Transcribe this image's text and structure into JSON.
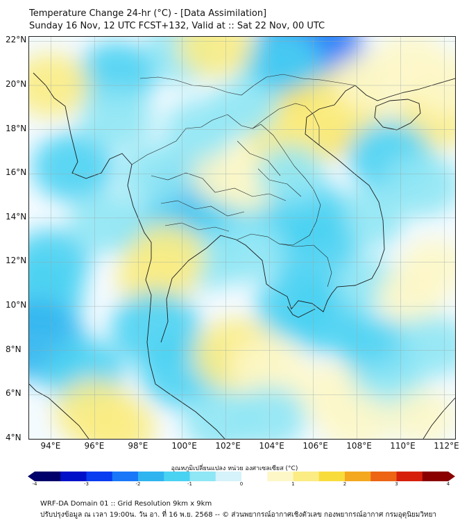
{
  "title": {
    "line1": "Temperature Change 24-hr (°C) - [Data Assimilation]",
    "line2": "Sunday 16 Nov, 12 UTC FCST+132, Valid at :: Sat 22 Nov, 00 UTC"
  },
  "map": {
    "lon_range": [
      93,
      112.5
    ],
    "lat_range": [
      4,
      22.2
    ],
    "lat_labels": [
      "22°N",
      "20°N",
      "18°N",
      "16°N",
      "14°N",
      "12°N",
      "10°N",
      "8°N",
      "6°N",
      "4°N"
    ],
    "lat_values": [
      22,
      20,
      18,
      16,
      14,
      12,
      10,
      8,
      6,
      4
    ],
    "lon_labels": [
      "94°E",
      "96°E",
      "98°E",
      "100°E",
      "102°E",
      "104°E",
      "106°E",
      "108°E",
      "110°E",
      "112°E"
    ],
    "lon_values": [
      94,
      96,
      98,
      100,
      102,
      104,
      106,
      108,
      110,
      112
    ]
  },
  "field_anomalies": [
    {
      "lon": 105.8,
      "lat": 21.5,
      "value": -2.3
    },
    {
      "lon": 104.5,
      "lat": 21.0,
      "value": -1.2
    },
    {
      "lon": 100.0,
      "lat": 21.5,
      "value": -1.0
    },
    {
      "lon": 97.0,
      "lat": 20.5,
      "value": -1.1
    },
    {
      "lon": 94.0,
      "lat": 20.0,
      "value": 1.0
    },
    {
      "lon": 101.5,
      "lat": 21.8,
      "value": 1.0
    },
    {
      "lon": 106.0,
      "lat": 18.3,
      "value": 1.6
    },
    {
      "lon": 107.5,
      "lat": 19.2,
      "value": 1.3
    },
    {
      "lon": 104.8,
      "lat": 17.5,
      "value": 1.4
    },
    {
      "lon": 108.5,
      "lat": 20.2,
      "value": 0.7
    },
    {
      "lon": 110.5,
      "lat": 21.0,
      "value": 0.9
    },
    {
      "lon": 111.5,
      "lat": 18.5,
      "value": 1.0
    },
    {
      "lon": 112.2,
      "lat": 20.0,
      "value": 0.9
    },
    {
      "lon": 109.5,
      "lat": 16.8,
      "value": -1.3
    },
    {
      "lon": 111.0,
      "lat": 15.5,
      "value": -1.0
    },
    {
      "lon": 108.5,
      "lat": 14.0,
      "value": -0.9
    },
    {
      "lon": 105.5,
      "lat": 14.2,
      "value": -1.4
    },
    {
      "lon": 106.0,
      "lat": 12.5,
      "value": -1.5
    },
    {
      "lon": 100.5,
      "lat": 15.0,
      "value": -1.6
    },
    {
      "lon": 102.5,
      "lat": 14.5,
      "value": -1.3
    },
    {
      "lon": 99.0,
      "lat": 13.0,
      "value": -1.2
    },
    {
      "lon": 103.0,
      "lat": 12.5,
      "value": -1.0
    },
    {
      "lon": 101.2,
      "lat": 12.0,
      "value": -0.6
    },
    {
      "lon": 99.2,
      "lat": 12.2,
      "value": 1.2
    },
    {
      "lon": 98.8,
      "lat": 11.3,
      "value": 1.0
    },
    {
      "lon": 102.0,
      "lat": 16.0,
      "value": 0.8
    },
    {
      "lon": 103.0,
      "lat": 15.5,
      "value": 0.6
    },
    {
      "lon": 98.8,
      "lat": 16.0,
      "value": -0.9
    },
    {
      "lon": 95.0,
      "lat": 16.3,
      "value": -1.2
    },
    {
      "lon": 94.0,
      "lat": 12.0,
      "value": -1.1
    },
    {
      "lon": 96.5,
      "lat": 13.8,
      "value": -0.9
    },
    {
      "lon": 93.5,
      "lat": 10.5,
      "value": -1.4
    },
    {
      "lon": 93.3,
      "lat": 8.5,
      "value": -1.8
    },
    {
      "lon": 98.8,
      "lat": 9.0,
      "value": -1.5
    },
    {
      "lon": 100.0,
      "lat": 7.0,
      "value": -1.3
    },
    {
      "lon": 95.5,
      "lat": 7.0,
      "value": -1.2
    },
    {
      "lon": 96.0,
      "lat": 5.2,
      "value": 1.1
    },
    {
      "lon": 97.0,
      "lat": 4.5,
      "value": 1.0
    },
    {
      "lon": 102.5,
      "lat": 7.8,
      "value": 1.4
    },
    {
      "lon": 104.0,
      "lat": 7.2,
      "value": 0.9
    },
    {
      "lon": 106.5,
      "lat": 9.5,
      "value": -1.3
    },
    {
      "lon": 105.2,
      "lat": 10.0,
      "value": -1.1
    },
    {
      "lon": 108.5,
      "lat": 11.0,
      "value": -0.6
    },
    {
      "lon": 110.5,
      "lat": 10.5,
      "value": 0.7
    },
    {
      "lon": 111.5,
      "lat": 11.8,
      "value": 0.6
    },
    {
      "lon": 109.0,
      "lat": 8.0,
      "value": -1.1
    },
    {
      "lon": 111.5,
      "lat": 8.2,
      "value": -0.9
    },
    {
      "lon": 106.8,
      "lat": 6.0,
      "value": 0.9
    },
    {
      "lon": 109.5,
      "lat": 6.0,
      "value": -1.0
    },
    {
      "lon": 108.0,
      "lat": 4.8,
      "value": 0.8
    },
    {
      "lon": 111.0,
      "lat": 5.0,
      "value": 0.6
    },
    {
      "lon": 101.8,
      "lat": 4.8,
      "value": -1.0
    },
    {
      "lon": 104.0,
      "lat": 5.0,
      "value": -0.9
    },
    {
      "lon": 105.0,
      "lat": 16.0,
      "value": -0.7
    },
    {
      "lon": 97.0,
      "lat": 18.5,
      "value": -0.9
    },
    {
      "lon": 100.8,
      "lat": 18.0,
      "value": -0.8
    },
    {
      "lon": 102.8,
      "lat": 19.0,
      "value": -0.7
    }
  ],
  "colorbar": {
    "title": "อุณหภูมิเปลี่ยนแปลง หน่วย องศาเซลเซียส (°C)",
    "min": -4,
    "max": 4,
    "tick_labels": [
      "-4",
      "-3",
      "-2",
      "-1",
      "0",
      "1",
      "2",
      "3",
      "4"
    ],
    "tick_values": [
      -4,
      -3,
      -2,
      -1,
      0,
      1,
      2,
      3,
      4
    ],
    "colors": [
      "#00006a",
      "#0010c8",
      "#0a3cf0",
      "#1a78f8",
      "#2fb4f0",
      "#4ad2f2",
      "#8fe6f4",
      "#d6f2fa",
      "#ffffff",
      "#fdf7c8",
      "#fbec84",
      "#f8dc3c",
      "#f4a820",
      "#ec6414",
      "#d6200c",
      "#8a0000"
    ]
  },
  "footer": {
    "line1": "WRF-DA Domain 01 :: Grid Resolution 9km x 9km",
    "line2": "ปรับปรุงข้อมูล ณ เวลา 19:00น. วัน อา. ที่ 16 พ.ย. 2568 -- © ส่วนพยากรณ์อากาศเชิงตัวเลข กองพยากรณ์อากาศ กรมอุตุนิยมวิทยา"
  }
}
